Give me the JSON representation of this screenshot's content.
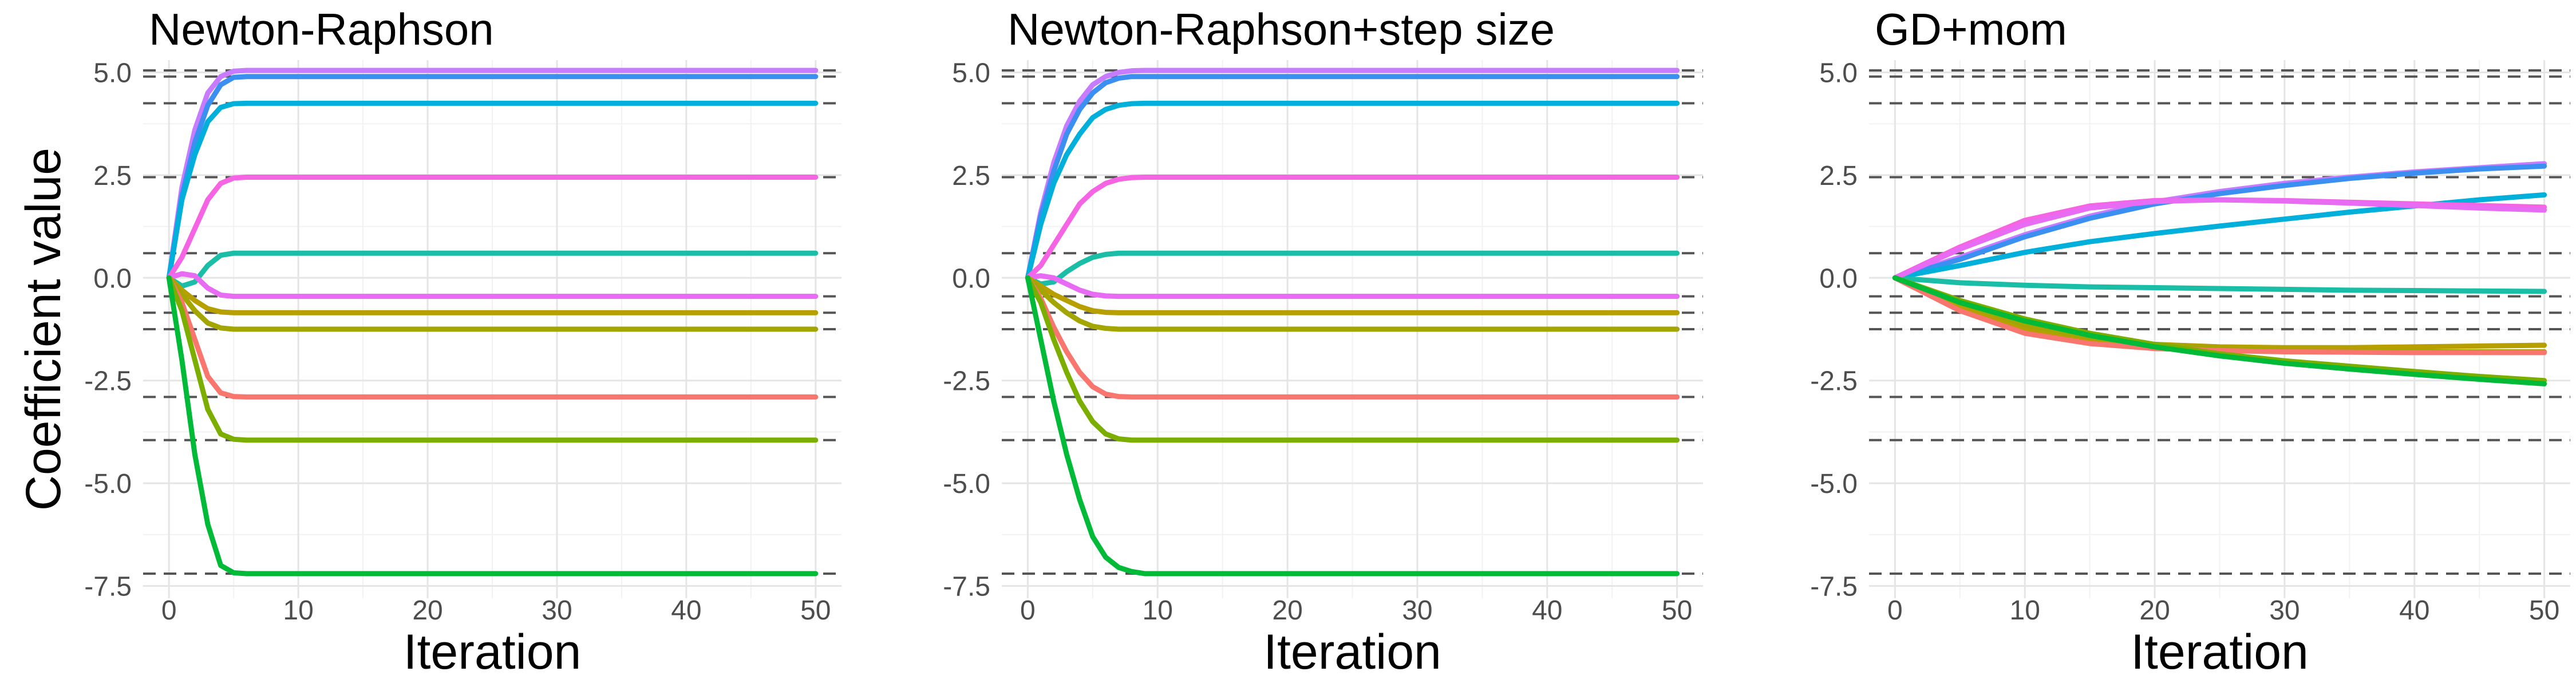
{
  "chart_data": {
    "type": "line",
    "ylabel": "Coefficient value",
    "xlabel": "Iteration",
    "xlim": [
      -2,
      52
    ],
    "ylim": [
      -7.8,
      5.3
    ],
    "x_ticks": [
      0,
      10,
      20,
      30,
      40,
      50
    ],
    "y_ticks": [
      -7.5,
      -5.0,
      -2.5,
      0.0,
      2.5,
      5.0
    ],
    "y_tick_labels": [
      "-7.5",
      "-5.0",
      "-2.5",
      "0.0",
      "2.5",
      "5.0"
    ],
    "grid": true,
    "legend": "none",
    "true_values": [
      5.05,
      4.9,
      4.25,
      2.45,
      0.6,
      -0.45,
      -0.85,
      -1.25,
      -2.9,
      -3.95,
      -7.2
    ],
    "series_colors": [
      "#C77CFF",
      "#3B8FF0",
      "#00B0DB",
      "#F564E3",
      "#1ABEA7",
      "#E76BF3",
      "#B79F00",
      "#A3A500",
      "#F8766D",
      "#7CAE00",
      "#00BA38"
    ],
    "panels": [
      {
        "title": "Newton-Raphson",
        "show_ylabel": true,
        "show_xlabel": true,
        "series": [
          {
            "values": [
              0,
              2.2,
              3.6,
              4.5,
              4.9,
              5.03,
              5.05
            ]
          },
          {
            "values": [
              0,
              2.0,
              3.3,
              4.2,
              4.7,
              4.88,
              4.9
            ]
          },
          {
            "values": [
              0,
              1.9,
              3.0,
              3.8,
              4.15,
              4.24,
              4.25
            ]
          },
          {
            "values": [
              0,
              0.5,
              1.2,
              1.9,
              2.3,
              2.43,
              2.45
            ]
          },
          {
            "values": [
              0,
              -0.2,
              -0.1,
              0.3,
              0.55,
              0.6,
              0.6
            ]
          },
          {
            "values": [
              0,
              0.1,
              0.05,
              -0.25,
              -0.42,
              -0.45,
              -0.45
            ]
          },
          {
            "values": [
              0,
              -0.3,
              -0.55,
              -0.75,
              -0.83,
              -0.85,
              -0.85
            ]
          },
          {
            "values": [
              0,
              -0.4,
              -0.8,
              -1.1,
              -1.22,
              -1.25,
              -1.25
            ]
          },
          {
            "values": [
              0,
              -0.6,
              -1.5,
              -2.4,
              -2.8,
              -2.89,
              -2.9
            ]
          },
          {
            "values": [
              0,
              -0.8,
              -2.0,
              -3.2,
              -3.8,
              -3.93,
              -3.95
            ]
          },
          {
            "values": [
              0,
              -2.0,
              -4.3,
              -6.0,
              -7.0,
              -7.18,
              -7.2
            ]
          }
        ]
      },
      {
        "title": "Newton-Raphson+step size",
        "show_ylabel": false,
        "show_xlabel": true,
        "series": [
          {
            "values": [
              0,
              1.6,
              2.8,
              3.7,
              4.3,
              4.7,
              4.9,
              5.0,
              5.04,
              5.05
            ]
          },
          {
            "values": [
              0,
              1.5,
              2.6,
              3.5,
              4.1,
              4.5,
              4.75,
              4.86,
              4.9,
              4.9
            ]
          },
          {
            "values": [
              0,
              1.3,
              2.3,
              3.0,
              3.5,
              3.9,
              4.1,
              4.2,
              4.24,
              4.25
            ]
          },
          {
            "values": [
              0,
              0.3,
              0.8,
              1.3,
              1.8,
              2.1,
              2.3,
              2.4,
              2.44,
              2.45
            ]
          },
          {
            "values": [
              0,
              -0.15,
              -0.1,
              0.15,
              0.35,
              0.5,
              0.57,
              0.6,
              0.6,
              0.6
            ]
          },
          {
            "values": [
              0,
              0.05,
              0.0,
              -0.15,
              -0.3,
              -0.4,
              -0.44,
              -0.45,
              -0.45,
              -0.45
            ]
          },
          {
            "values": [
              0,
              -0.2,
              -0.4,
              -0.55,
              -0.7,
              -0.8,
              -0.84,
              -0.85,
              -0.85,
              -0.85
            ]
          },
          {
            "values": [
              0,
              -0.3,
              -0.6,
              -0.85,
              -1.05,
              -1.18,
              -1.23,
              -1.25,
              -1.25,
              -1.25
            ]
          },
          {
            "values": [
              0,
              -0.5,
              -1.2,
              -1.8,
              -2.3,
              -2.65,
              -2.83,
              -2.89,
              -2.9,
              -2.9
            ]
          },
          {
            "values": [
              0,
              -0.6,
              -1.5,
              -2.3,
              -3.0,
              -3.5,
              -3.8,
              -3.92,
              -3.95,
              -3.95
            ]
          },
          {
            "values": [
              0,
              -1.5,
              -3.0,
              -4.3,
              -5.4,
              -6.3,
              -6.8,
              -7.05,
              -7.15,
              -7.2,
              -7.2
            ]
          }
        ]
      },
      {
        "title": "GD+mom",
        "show_ylabel": false,
        "show_xlabel": true,
        "series": [
          {
            "x": [
              0,
              5,
              10,
              15,
              20,
              25,
              30,
              35,
              40,
              45,
              50
            ],
            "values": [
              0,
              0.5,
              1.05,
              1.5,
              1.85,
              2.1,
              2.3,
              2.45,
              2.58,
              2.68,
              2.78
            ]
          },
          {
            "x": [
              0,
              5,
              10,
              15,
              20,
              25,
              30,
              35,
              40,
              45,
              50
            ],
            "values": [
              0,
              0.45,
              1.0,
              1.45,
              1.8,
              2.05,
              2.25,
              2.42,
              2.55,
              2.65,
              2.72
            ]
          },
          {
            "x": [
              0,
              5,
              10,
              15,
              20,
              25,
              30,
              35,
              40,
              45,
              50
            ],
            "values": [
              0,
              0.3,
              0.62,
              0.88,
              1.08,
              1.26,
              1.43,
              1.6,
              1.75,
              1.9,
              2.02
            ]
          },
          {
            "x": [
              0,
              5,
              10,
              15,
              20,
              25,
              30,
              35,
              40,
              45,
              50
            ],
            "values": [
              0,
              0.75,
              1.4,
              1.75,
              1.88,
              1.9,
              1.88,
              1.84,
              1.8,
              1.76,
              1.72
            ]
          },
          {
            "x": [
              0,
              5,
              10,
              15,
              20,
              25,
              30,
              35,
              40,
              45,
              50
            ],
            "values": [
              0,
              -0.12,
              -0.18,
              -0.22,
              -0.24,
              -0.26,
              -0.28,
              -0.3,
              -0.31,
              -0.32,
              -0.33
            ]
          },
          {
            "x": [
              0,
              5,
              10,
              15,
              20,
              25,
              30,
              35,
              40,
              45,
              50
            ],
            "values": [
              0,
              0.7,
              1.3,
              1.7,
              1.86,
              1.9,
              1.87,
              1.82,
              1.76,
              1.7,
              1.65
            ]
          },
          {
            "x": [
              0,
              5,
              10,
              15,
              20,
              25,
              30,
              35,
              40,
              45,
              50
            ],
            "values": [
              0,
              -0.7,
              -1.25,
              -1.5,
              -1.62,
              -1.68,
              -1.7,
              -1.7,
              -1.68,
              -1.66,
              -1.64
            ]
          },
          {
            "x": [
              0,
              5,
              10,
              15,
              20,
              25,
              30,
              35,
              40,
              45,
              50
            ],
            "values": [
              0,
              -0.6,
              -1.15,
              -1.45,
              -1.62,
              -1.72,
              -1.77,
              -1.79,
              -1.8,
              -1.8,
              -1.8
            ]
          },
          {
            "x": [
              0,
              5,
              10,
              15,
              20,
              25,
              30,
              35,
              40,
              45,
              50
            ],
            "values": [
              0,
              -0.8,
              -1.35,
              -1.6,
              -1.72,
              -1.77,
              -1.8,
              -1.81,
              -1.82,
              -1.82,
              -1.82
            ]
          },
          {
            "x": [
              0,
              5,
              10,
              15,
              20,
              25,
              30,
              35,
              40,
              45,
              50
            ],
            "values": [
              0,
              -0.55,
              -1.0,
              -1.35,
              -1.62,
              -1.85,
              -2.02,
              -2.15,
              -2.28,
              -2.4,
              -2.5
            ]
          },
          {
            "x": [
              0,
              5,
              10,
              15,
              20,
              25,
              30,
              35,
              40,
              45,
              50
            ],
            "values": [
              0,
              -0.6,
              -1.05,
              -1.4,
              -1.68,
              -1.9,
              -2.08,
              -2.22,
              -2.35,
              -2.47,
              -2.58
            ]
          }
        ]
      }
    ]
  }
}
